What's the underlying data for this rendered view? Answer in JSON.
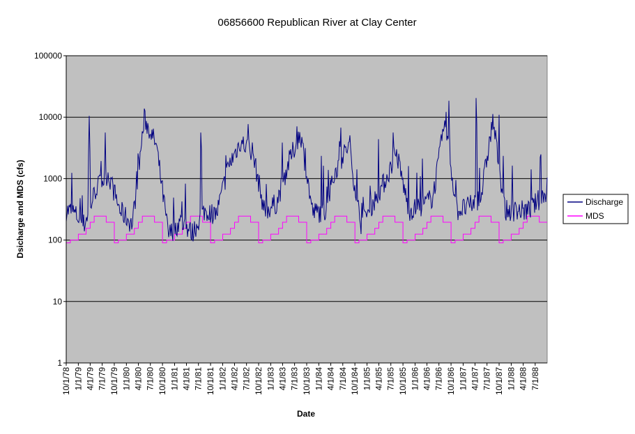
{
  "chart_data": {
    "type": "line",
    "title": "06856600 Republican River at Clay Center",
    "xlabel": "Date",
    "ylabel": "Dsicharge and MDS (cfs)",
    "y_scale": "log",
    "ylim": [
      1,
      100000
    ],
    "y_ticks": [
      "1",
      "10",
      "100",
      "1000",
      "10000",
      "100000"
    ],
    "x_tick_labels": [
      "10/1/78",
      "1/1/79",
      "4/1/79",
      "7/1/79",
      "10/1/79",
      "1/1/80",
      "4/1/80",
      "7/1/80",
      "10/1/80",
      "1/1/81",
      "4/1/81",
      "7/1/81",
      "10/1/81",
      "1/1/82",
      "4/1/82",
      "7/1/82",
      "10/1/82",
      "1/1/83",
      "4/1/83",
      "7/1/83",
      "10/1/83",
      "1/1/84",
      "4/1/84",
      "7/1/84",
      "10/1/84",
      "1/1/85",
      "4/1/85",
      "7/1/85",
      "10/1/85",
      "1/1/86",
      "4/1/86",
      "7/1/86",
      "10/1/86",
      "1/1/87",
      "4/1/87",
      "7/1/87",
      "10/1/87",
      "1/1/88",
      "4/1/88",
      "7/1/88"
    ],
    "grid": "horizontal major gridlines",
    "plot_background": "#c0c0c0",
    "legend_position": "right",
    "series": [
      {
        "name": "Discharge",
        "color": "#000080",
        "quarterly_values": [
          300,
          180,
          700,
          1200,
          300,
          180,
          9500,
          3500,
          120,
          200,
          130,
          300,
          260,
          1600,
          4000,
          2800,
          290,
          400,
          1800,
          5500,
          280,
          290,
          1500,
          3500,
          180,
          400,
          900,
          2500,
          300,
          350,
          500,
          8000,
          300,
          350,
          500,
          9000,
          300,
          300,
          300,
          500
        ],
        "peaks": [
          {
            "date": "3/25/79",
            "value": 11500
          },
          {
            "date": "6/15/80",
            "value": 10200
          },
          {
            "date": "7/20/81",
            "value": 8500
          },
          {
            "date": "7/15/82",
            "value": 12000
          },
          {
            "date": "7/20/83",
            "value": 9600
          },
          {
            "date": "6/15/84",
            "value": 9800
          },
          {
            "date": "7/20/85",
            "value": 9000
          },
          {
            "date": "9/15/86",
            "value": 20000
          },
          {
            "date": "4/10/87",
            "value": 26000
          },
          {
            "date": "8/10/88",
            "value": 3800
          }
        ]
      },
      {
        "name": "MDS",
        "color": "#ff00ff",
        "monthly_pattern": {
          "Oct": 90,
          "Nov": 100,
          "Dec": 100,
          "Jan": 125,
          "Feb": 125,
          "Mar": 155,
          "Apr": 195,
          "May": 245,
          "Jun": 245,
          "Jul": 245,
          "Aug": 195,
          "Sep": 195
        }
      }
    ]
  }
}
